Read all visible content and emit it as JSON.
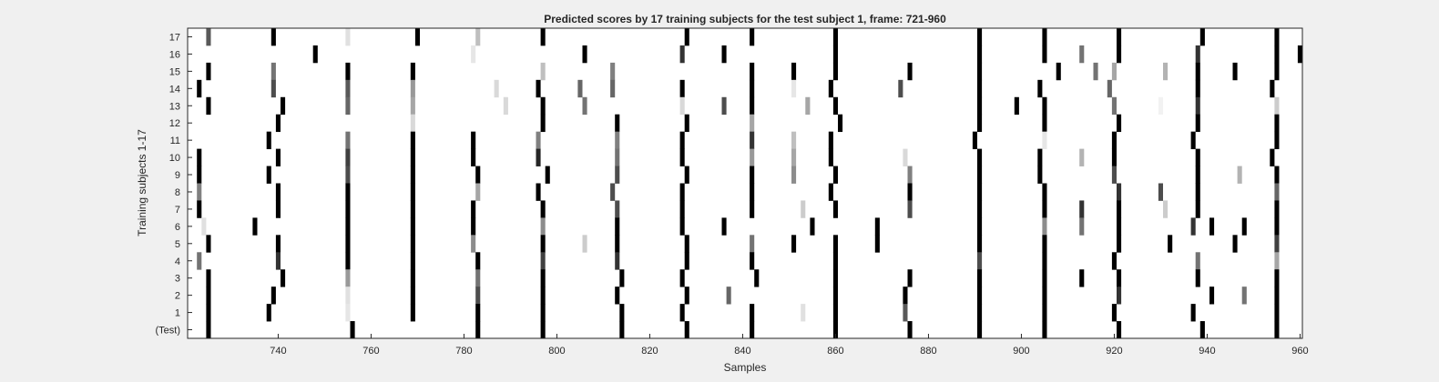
{
  "chart_data": {
    "type": "heatmap",
    "title": "Predicted scores by 17 training subjects for the test subject 1, frame: 721-960",
    "xlabel": "Samples",
    "ylabel": "Training subjects 1-17",
    "xlim": [
      721,
      960
    ],
    "xticks": [
      740,
      760,
      780,
      800,
      820,
      840,
      860,
      880,
      900,
      920,
      940,
      960
    ],
    "yticklabels": [
      "17",
      "16",
      "15",
      "14",
      "13",
      "12",
      "11",
      "10",
      "9",
      "8",
      "7",
      "6",
      "5",
      "4",
      "3",
      "2",
      "1",
      "(Test)"
    ],
    "colormap": "gray-inverted",
    "value_range": [
      0,
      1
    ],
    "rows": [
      {
        "label": "17",
        "marks": [
          [
            725,
            0.65
          ],
          [
            739,
            1
          ],
          [
            755,
            0.12
          ],
          [
            770,
            1
          ],
          [
            783,
            0.25
          ],
          [
            797,
            1
          ],
          [
            828,
            1
          ],
          [
            842,
            1
          ],
          [
            860,
            1
          ],
          [
            891,
            1
          ],
          [
            905,
            1
          ],
          [
            921,
            1
          ],
          [
            939,
            1
          ],
          [
            955,
            1
          ]
        ]
      },
      {
        "label": "16",
        "marks": [
          [
            748,
            1
          ],
          [
            782,
            0.1
          ],
          [
            806,
            1
          ],
          [
            827,
            0.8
          ],
          [
            836,
            1
          ],
          [
            860,
            1
          ],
          [
            891,
            1
          ],
          [
            905,
            1
          ],
          [
            913,
            0.55
          ],
          [
            921,
            1
          ],
          [
            938,
            0.8
          ],
          [
            955,
            1
          ],
          [
            960,
            1
          ]
        ]
      },
      {
        "label": "15",
        "marks": [
          [
            725,
            1
          ],
          [
            739,
            0.55
          ],
          [
            755,
            1
          ],
          [
            769,
            1
          ],
          [
            797,
            0.25
          ],
          [
            812,
            0.5
          ],
          [
            842,
            1
          ],
          [
            851,
            1
          ],
          [
            860,
            1
          ],
          [
            876,
            1
          ],
          [
            891,
            1
          ],
          [
            908,
            1
          ],
          [
            916,
            0.55
          ],
          [
            920,
            0.35
          ],
          [
            931,
            0.3
          ],
          [
            938,
            1
          ],
          [
            946,
            1
          ],
          [
            955,
            1
          ]
        ]
      },
      {
        "label": "14",
        "marks": [
          [
            723,
            1
          ],
          [
            739,
            0.7
          ],
          [
            755,
            0.65
          ],
          [
            769,
            0.4
          ],
          [
            787,
            0.15
          ],
          [
            796,
            1
          ],
          [
            805,
            0.6
          ],
          [
            812,
            0.6
          ],
          [
            827,
            1
          ],
          [
            842,
            1
          ],
          [
            851,
            0.1
          ],
          [
            859,
            1
          ],
          [
            874,
            0.7
          ],
          [
            891,
            1
          ],
          [
            904,
            1
          ],
          [
            919,
            0.6
          ],
          [
            938,
            1
          ],
          [
            954,
            1
          ]
        ]
      },
      {
        "label": "13",
        "marks": [
          [
            725,
            1
          ],
          [
            741,
            1
          ],
          [
            755,
            0.6
          ],
          [
            769,
            0.35
          ],
          [
            789,
            0.15
          ],
          [
            797,
            1
          ],
          [
            806,
            0.55
          ],
          [
            827,
            0.15
          ],
          [
            836,
            0.7
          ],
          [
            842,
            1
          ],
          [
            854,
            0.35
          ],
          [
            860,
            1
          ],
          [
            891,
            1
          ],
          [
            899,
            1
          ],
          [
            905,
            1
          ],
          [
            920,
            0.55
          ],
          [
            930,
            0.05
          ],
          [
            938,
            0.8
          ],
          [
            955,
            0.2
          ]
        ]
      },
      {
        "label": "12",
        "marks": [
          [
            740,
            1
          ],
          [
            769,
            0.15
          ],
          [
            797,
            1
          ],
          [
            813,
            1
          ],
          [
            828,
            1
          ],
          [
            842,
            0.35
          ],
          [
            861,
            1
          ],
          [
            891,
            1
          ],
          [
            905,
            1
          ],
          [
            921,
            1
          ],
          [
            938,
            1
          ],
          [
            955,
            1
          ]
        ]
      },
      {
        "label": "11",
        "marks": [
          [
            738,
            1
          ],
          [
            755,
            0.55
          ],
          [
            769,
            1
          ],
          [
            782,
            1
          ],
          [
            796,
            0.5
          ],
          [
            813,
            0.5
          ],
          [
            827,
            1
          ],
          [
            842,
            0.8
          ],
          [
            851,
            0.25
          ],
          [
            859,
            1
          ],
          [
            890,
            1
          ],
          [
            905,
            0.1
          ],
          [
            920,
            1
          ],
          [
            937,
            1
          ],
          [
            955,
            1
          ]
        ]
      },
      {
        "label": "10",
        "marks": [
          [
            723,
            1
          ],
          [
            740,
            1
          ],
          [
            755,
            0.75
          ],
          [
            769,
            1
          ],
          [
            782,
            1
          ],
          [
            796,
            0.85
          ],
          [
            813,
            0.55
          ],
          [
            827,
            1
          ],
          [
            842,
            0.4
          ],
          [
            851,
            0.35
          ],
          [
            859,
            1
          ],
          [
            875,
            0.15
          ],
          [
            891,
            1
          ],
          [
            904,
            1
          ],
          [
            913,
            0.3
          ],
          [
            920,
            1
          ],
          [
            938,
            1
          ],
          [
            954,
            1
          ]
        ]
      },
      {
        "label": "9",
        "marks": [
          [
            723,
            1
          ],
          [
            738,
            1
          ],
          [
            755,
            0.7
          ],
          [
            769,
            1
          ],
          [
            783,
            1
          ],
          [
            798,
            1
          ],
          [
            813,
            0.7
          ],
          [
            828,
            1
          ],
          [
            842,
            1
          ],
          [
            851,
            0.45
          ],
          [
            860,
            1
          ],
          [
            876,
            0.5
          ],
          [
            891,
            1
          ],
          [
            904,
            1
          ],
          [
            920,
            0.7
          ],
          [
            938,
            1
          ],
          [
            947,
            0.3
          ],
          [
            955,
            1
          ]
        ]
      },
      {
        "label": "8",
        "marks": [
          [
            723,
            0.5
          ],
          [
            740,
            1
          ],
          [
            755,
            1
          ],
          [
            769,
            1
          ],
          [
            783,
            0.35
          ],
          [
            796,
            1
          ],
          [
            812,
            0.7
          ],
          [
            827,
            1
          ],
          [
            842,
            1
          ],
          [
            859,
            1
          ],
          [
            876,
            1
          ],
          [
            891,
            1
          ],
          [
            905,
            1
          ],
          [
            921,
            0.8
          ],
          [
            930,
            0.7
          ],
          [
            938,
            1
          ],
          [
            955,
            0.6
          ]
        ]
      },
      {
        "label": "7",
        "marks": [
          [
            723,
            1
          ],
          [
            740,
            1
          ],
          [
            755,
            1
          ],
          [
            769,
            1
          ],
          [
            782,
            1
          ],
          [
            797,
            1
          ],
          [
            813,
            0.7
          ],
          [
            827,
            1
          ],
          [
            842,
            1
          ],
          [
            853,
            0.2
          ],
          [
            860,
            1
          ],
          [
            876,
            0.7
          ],
          [
            891,
            1
          ],
          [
            905,
            1
          ],
          [
            913,
            0.8
          ],
          [
            921,
            1
          ],
          [
            931,
            0.2
          ],
          [
            938,
            1
          ],
          [
            955,
            1
          ]
        ]
      },
      {
        "label": "6",
        "marks": [
          [
            724,
            0.12
          ],
          [
            735,
            1
          ],
          [
            755,
            1
          ],
          [
            769,
            1
          ],
          [
            782,
            1
          ],
          [
            797,
            0.45
          ],
          [
            813,
            1
          ],
          [
            827,
            1
          ],
          [
            836,
            1
          ],
          [
            855,
            1
          ],
          [
            869,
            1
          ],
          [
            891,
            1
          ],
          [
            905,
            0.45
          ],
          [
            913,
            0.55
          ],
          [
            921,
            1
          ],
          [
            937,
            0.8
          ],
          [
            941,
            1
          ],
          [
            948,
            1
          ],
          [
            955,
            1
          ]
        ]
      },
      {
        "label": "5",
        "marks": [
          [
            725,
            1
          ],
          [
            740,
            1
          ],
          [
            755,
            1
          ],
          [
            769,
            1
          ],
          [
            782,
            0.45
          ],
          [
            797,
            1
          ],
          [
            806,
            0.2
          ],
          [
            813,
            1
          ],
          [
            828,
            1
          ],
          [
            842,
            0.55
          ],
          [
            851,
            1
          ],
          [
            860,
            1
          ],
          [
            869,
            1
          ],
          [
            891,
            1
          ],
          [
            905,
            1
          ],
          [
            921,
            1
          ],
          [
            932,
            1
          ],
          [
            946,
            1
          ],
          [
            955,
            0.75
          ]
        ]
      },
      {
        "label": "4",
        "marks": [
          [
            723,
            0.55
          ],
          [
            740,
            0.8
          ],
          [
            755,
            1
          ],
          [
            769,
            1
          ],
          [
            783,
            1
          ],
          [
            797,
            0.75
          ],
          [
            813,
            0.8
          ],
          [
            828,
            1
          ],
          [
            842,
            1
          ],
          [
            860,
            1
          ],
          [
            891,
            0.7
          ],
          [
            905,
            1
          ],
          [
            920,
            1
          ],
          [
            938,
            0.55
          ],
          [
            955,
            0.35
          ]
        ]
      },
      {
        "label": "3",
        "marks": [
          [
            725,
            1
          ],
          [
            741,
            1
          ],
          [
            755,
            0.4
          ],
          [
            769,
            1
          ],
          [
            783,
            0.55
          ],
          [
            797,
            1
          ],
          [
            814,
            1
          ],
          [
            827,
            1
          ],
          [
            843,
            1
          ],
          [
            860,
            1
          ],
          [
            876,
            1
          ],
          [
            891,
            1
          ],
          [
            905,
            1
          ],
          [
            913,
            1
          ],
          [
            921,
            1
          ],
          [
            938,
            1
          ],
          [
            955,
            1
          ]
        ]
      },
      {
        "label": "2",
        "marks": [
          [
            725,
            1
          ],
          [
            739,
            1
          ],
          [
            755,
            0.12
          ],
          [
            769,
            1
          ],
          [
            783,
            0.7
          ],
          [
            797,
            1
          ],
          [
            813,
            1
          ],
          [
            828,
            1
          ],
          [
            837,
            0.6
          ],
          [
            860,
            1
          ],
          [
            875,
            1
          ],
          [
            891,
            1
          ],
          [
            905,
            1
          ],
          [
            921,
            0.8
          ],
          [
            941,
            1
          ],
          [
            948,
            0.55
          ],
          [
            955,
            1
          ]
        ]
      },
      {
        "label": "1",
        "marks": [
          [
            725,
            1
          ],
          [
            738,
            1
          ],
          [
            755,
            0.1
          ],
          [
            769,
            1
          ],
          [
            783,
            1
          ],
          [
            797,
            1
          ],
          [
            814,
            1
          ],
          [
            827,
            1
          ],
          [
            842,
            1
          ],
          [
            853,
            0.12
          ],
          [
            860,
            1
          ],
          [
            875,
            0.65
          ],
          [
            891,
            1
          ],
          [
            905,
            1
          ],
          [
            920,
            1
          ],
          [
            937,
            1
          ],
          [
            955,
            1
          ]
        ]
      },
      {
        "label": "(Test)",
        "marks": [
          [
            725,
            1
          ],
          [
            756,
            1
          ],
          [
            783,
            1
          ],
          [
            797,
            1
          ],
          [
            814,
            1
          ],
          [
            828,
            1
          ],
          [
            842,
            1
          ],
          [
            860,
            1
          ],
          [
            876,
            1
          ],
          [
            891,
            1
          ],
          [
            905,
            1
          ],
          [
            921,
            1
          ],
          [
            939,
            1
          ],
          [
            955,
            1
          ]
        ]
      }
    ]
  }
}
